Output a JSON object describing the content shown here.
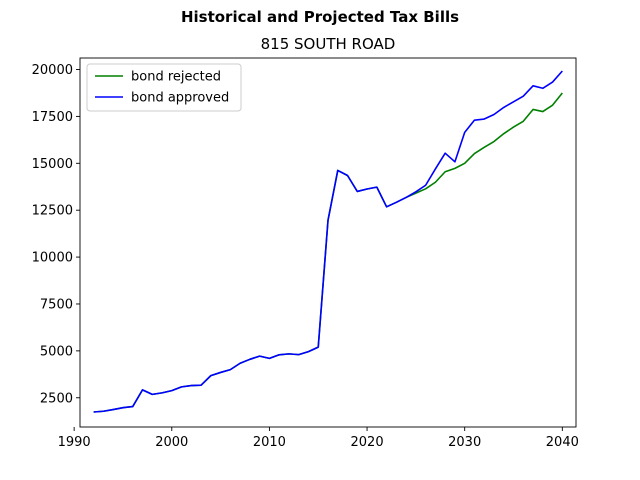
{
  "chart_data": {
    "type": "line",
    "title": "Historical and Projected Tax Bills",
    "subtitle": "815 SOUTH ROAD",
    "xlabel": "",
    "ylabel": "",
    "xlim": [
      1990.6,
      2041.4
    ],
    "ylim": [
      941,
      20614
    ],
    "xticks": [
      1990,
      2000,
      2010,
      2020,
      2030,
      2040
    ],
    "yticks": [
      2500,
      5000,
      7500,
      10000,
      12500,
      15000,
      17500,
      20000
    ],
    "grid": false,
    "legend_position": "top-left",
    "series": [
      {
        "name": "bond rejected",
        "color": "#008000",
        "x": [
          1992,
          1993,
          1994,
          1995,
          1996,
          1997,
          1998,
          1999,
          2000,
          2001,
          2002,
          2003,
          2004,
          2005,
          2006,
          2007,
          2008,
          2009,
          2010,
          2011,
          2012,
          2013,
          2014,
          2015,
          2016,
          2017,
          2018,
          2019,
          2020,
          2021,
          2022,
          2023,
          2024,
          2025,
          2026,
          2027,
          2028,
          2029,
          2030,
          2031,
          2032,
          2033,
          2034,
          2035,
          2036,
          2037,
          2038,
          2039,
          2040
        ],
        "values": [
          1740,
          1780,
          1870,
          1970,
          2030,
          2920,
          2680,
          2760,
          2880,
          3080,
          3150,
          3170,
          3680,
          3850,
          4000,
          4340,
          4550,
          4720,
          4600,
          4790,
          4840,
          4800,
          4960,
          5200,
          11960,
          14620,
          14350,
          13500,
          13630,
          13730,
          12680,
          12920,
          13180,
          13410,
          13640,
          13990,
          14550,
          14730,
          15000,
          15520,
          15850,
          16160,
          16580,
          16930,
          17240,
          17870,
          17760,
          18100,
          18750
        ]
      },
      {
        "name": "bond approved",
        "color": "#0000ff",
        "x": [
          1992,
          1993,
          1994,
          1995,
          1996,
          1997,
          1998,
          1999,
          2000,
          2001,
          2002,
          2003,
          2004,
          2005,
          2006,
          2007,
          2008,
          2009,
          2010,
          2011,
          2012,
          2013,
          2014,
          2015,
          2016,
          2017,
          2018,
          2019,
          2020,
          2021,
          2022,
          2023,
          2024,
          2025,
          2026,
          2027,
          2028,
          2029,
          2030,
          2031,
          2032,
          2033,
          2034,
          2035,
          2036,
          2037,
          2038,
          2039,
          2040
        ],
        "values": [
          1740,
          1780,
          1870,
          1970,
          2030,
          2920,
          2680,
          2760,
          2880,
          3080,
          3150,
          3170,
          3680,
          3850,
          4000,
          4340,
          4550,
          4720,
          4600,
          4790,
          4840,
          4800,
          4960,
          5200,
          11960,
          14620,
          14350,
          13500,
          13630,
          13730,
          12680,
          12920,
          13180,
          13480,
          13830,
          14700,
          15540,
          15080,
          16650,
          17300,
          17360,
          17600,
          17980,
          18280,
          18580,
          19130,
          19000,
          19330,
          19920
        ]
      }
    ]
  }
}
